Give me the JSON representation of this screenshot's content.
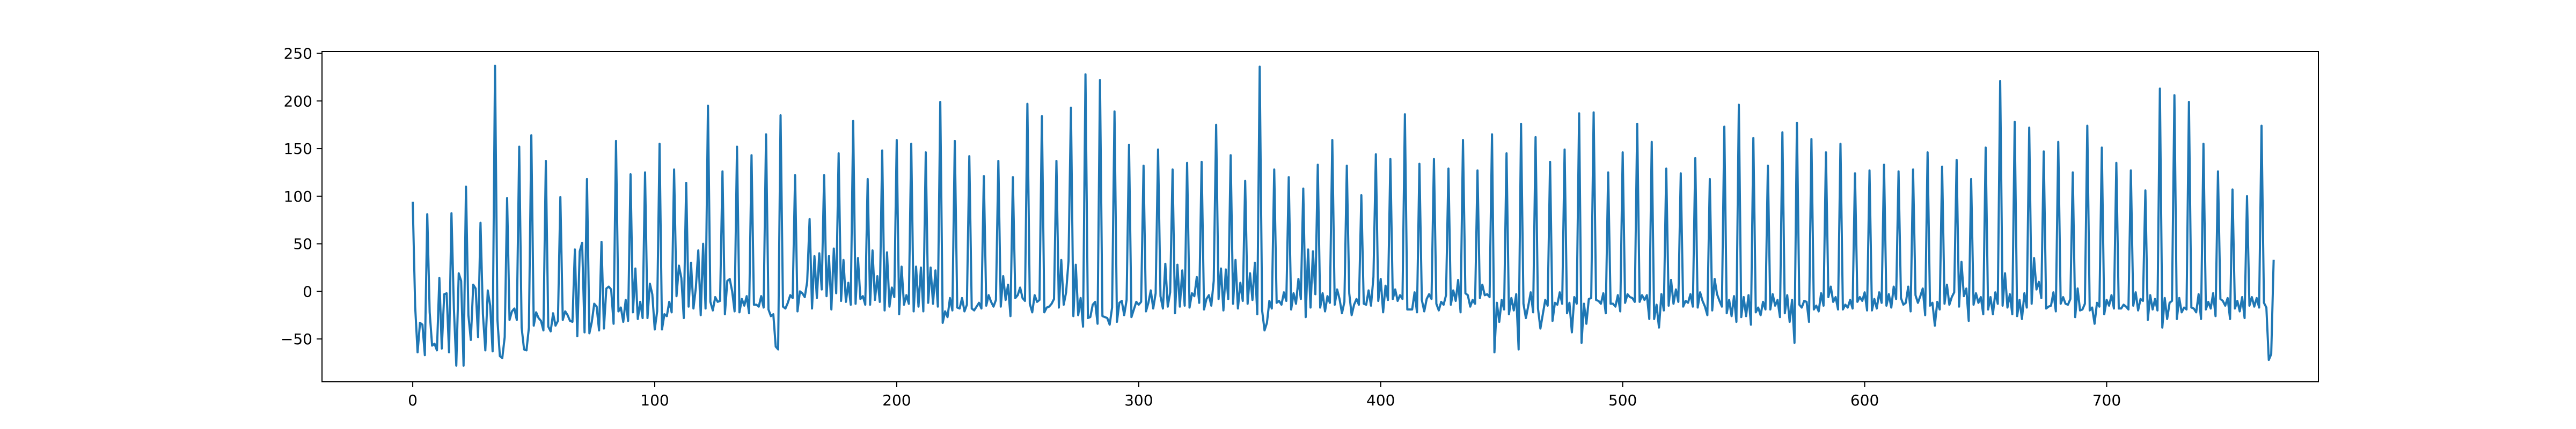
{
  "chart_data": {
    "type": "line",
    "title": "",
    "xlabel": "",
    "ylabel": "",
    "xlim": [
      -37.5,
      787.5
    ],
    "ylim": [
      -95,
      252
    ],
    "grid": false,
    "legend": "none",
    "x_ticks": [
      0,
      100,
      200,
      300,
      400,
      500,
      600,
      700
    ],
    "x_tick_labels": [
      "0",
      "100",
      "200",
      "300",
      "400",
      "500",
      "600",
      "700"
    ],
    "y_ticks": [
      -50,
      0,
      50,
      100,
      150,
      200,
      250
    ],
    "y_tick_labels": [
      "−50",
      "0",
      "50",
      "100",
      "150",
      "200",
      "250"
    ],
    "series": [
      {
        "color": "#1f77b4",
        "x_start": 0,
        "x_step": 1,
        "values": [
          93,
          -16,
          -64,
          -33,
          -35,
          -67,
          81,
          -22,
          -57,
          -55,
          -62,
          14,
          -60,
          -3,
          -2,
          -64,
          82,
          -18,
          -78,
          19,
          11,
          -78,
          110,
          -25,
          -51,
          7,
          3,
          -48,
          72,
          -24,
          -62,
          1,
          -15,
          -63,
          237,
          -30,
          -68,
          -70,
          -48,
          98,
          -30,
          -21,
          -18,
          -30,
          152,
          -38,
          -61,
          -62,
          -38,
          164,
          -36,
          -22,
          -28,
          -31,
          -41,
          137,
          -37,
          -42,
          -23,
          -36,
          -31,
          99,
          -30,
          -21,
          -25,
          -31,
          -32,
          44,
          -47,
          42,
          51,
          -43,
          118,
          -44,
          -32,
          -13,
          -16,
          -41,
          52,
          -39,
          3,
          5,
          2,
          -34,
          158,
          -21,
          -17,
          -32,
          -9,
          -31,
          123,
          -22,
          24,
          -29,
          -11,
          -28,
          125,
          -28,
          8,
          -3,
          -40,
          -21,
          155,
          -40,
          -24,
          -26,
          -11,
          -22,
          128,
          -5,
          27,
          14,
          -28,
          114,
          -16,
          30,
          -18,
          4,
          43,
          -25,
          50,
          -18,
          195,
          -11,
          -20,
          -6,
          -11,
          -10,
          126,
          -24,
          11,
          13,
          0,
          -21,
          152,
          -22,
          -8,
          -15,
          -5,
          -23,
          143,
          -14,
          -14,
          -16,
          -5,
          -17,
          165,
          -19,
          -26,
          -24,
          -58,
          -61,
          185,
          -16,
          -18,
          -12,
          -4,
          -7,
          122,
          -21,
          0,
          -2,
          -6,
          10,
          76,
          -18,
          37,
          -7,
          40,
          2,
          122,
          -5,
          37,
          -19,
          45,
          -2,
          145,
          -10,
          33,
          -11,
          9,
          -14,
          179,
          -13,
          35,
          -8,
          -5,
          -14,
          118,
          -14,
          43,
          -9,
          16,
          -11,
          148,
          -20,
          41,
          -16,
          4,
          -6,
          159,
          -24,
          26,
          -14,
          -4,
          -13,
          155,
          -21,
          26,
          -16,
          25,
          -21,
          146,
          -12,
          25,
          -13,
          22,
          -16,
          199,
          -33,
          -21,
          -27,
          -7,
          -20,
          158,
          -17,
          -18,
          -7,
          -21,
          -14,
          142,
          -18,
          -20,
          -16,
          -12,
          -18,
          121,
          -15,
          -4,
          -11,
          -16,
          -9,
          137,
          -16,
          16,
          -9,
          7,
          -26,
          120,
          -7,
          -4,
          4,
          -7,
          -10,
          197,
          -13,
          -22,
          -4,
          -11,
          -9,
          184,
          -22,
          -17,
          -16,
          -13,
          -8,
          137,
          -17,
          33,
          -14,
          -1,
          32,
          193,
          -26,
          28,
          -25,
          -7,
          -37,
          228,
          -28,
          -27,
          -14,
          -11,
          -34,
          222,
          -26,
          -27,
          -28,
          -35,
          -17,
          189,
          -32,
          -12,
          -10,
          -25,
          -9,
          154,
          -27,
          -19,
          -11,
          -14,
          -11,
          132,
          -21,
          -12,
          1,
          -18,
          -2,
          149,
          -5,
          -18,
          29,
          -16,
          -1,
          128,
          -23,
          28,
          -16,
          22,
          -15,
          135,
          -17,
          -2,
          -5,
          15,
          -12,
          136,
          -19,
          -8,
          -4,
          -15,
          11,
          175,
          -8,
          24,
          -20,
          23,
          -8,
          143,
          -13,
          33,
          -18,
          9,
          -10,
          116,
          -13,
          19,
          -9,
          30,
          -24,
          236,
          -20,
          -41,
          -33,
          -10,
          -18,
          128,
          -12,
          -10,
          -14,
          -1,
          -10,
          120,
          -19,
          -2,
          -13,
          13,
          -8,
          108,
          -27,
          44,
          -17,
          42,
          -3,
          133,
          -17,
          -2,
          -21,
          -5,
          -12,
          159,
          -14,
          2,
          -8,
          -23,
          -11,
          132,
          -2,
          -25,
          -14,
          -8,
          -14,
          101,
          -13,
          -14,
          1,
          -15,
          15,
          144,
          -10,
          13,
          -22,
          6,
          -9,
          139,
          -8,
          2,
          -10,
          -4,
          -8,
          186,
          -19,
          -19,
          -19,
          -1,
          -22,
          134,
          -9,
          -21,
          -8,
          -3,
          -8,
          139,
          -13,
          -20,
          -11,
          -14,
          -4,
          129,
          -14,
          1,
          -10,
          12,
          -22,
          159,
          -2,
          -4,
          -16,
          -9,
          -13,
          127,
          -7,
          7,
          -4,
          -3,
          -6,
          165,
          -64,
          -12,
          -32,
          -9,
          -19,
          145,
          -24,
          -7,
          -20,
          -3,
          -61,
          176,
          -13,
          -28,
          -15,
          -1,
          -22,
          162,
          -18,
          -39,
          -24,
          -9,
          -15,
          136,
          -31,
          -12,
          -14,
          -1,
          -13,
          149,
          -23,
          -12,
          -43,
          -6,
          -13,
          187,
          -54,
          -13,
          -34,
          -8,
          -7,
          188,
          -9,
          -10,
          -13,
          -2,
          -23,
          125,
          -13,
          -13,
          -16,
          -4,
          -21,
          146,
          -12,
          -3,
          -6,
          -7,
          -11,
          176,
          -11,
          -4,
          -9,
          -4,
          -29,
          157,
          -29,
          -14,
          -38,
          -3,
          -20,
          129,
          -15,
          12,
          -13,
          2,
          -11,
          124,
          -16,
          -10,
          -12,
          -3,
          -16,
          140,
          -17,
          -1,
          -10,
          -16,
          -25,
          118,
          -20,
          13,
          -3,
          -10,
          -16,
          173,
          -23,
          -9,
          -26,
          -5,
          -32,
          196,
          -27,
          -6,
          -26,
          -4,
          -35,
          161,
          -22,
          -17,
          -25,
          -11,
          -19,
          132,
          -19,
          -3,
          -15,
          -9,
          -27,
          167,
          -23,
          -4,
          -32,
          -9,
          -54,
          177,
          -14,
          -17,
          -10,
          -11,
          -32,
          160,
          -19,
          -15,
          -21,
          -2,
          -15,
          146,
          -6,
          5,
          -11,
          -6,
          -19,
          155,
          -19,
          -14,
          -17,
          -9,
          -18,
          124,
          -11,
          -6,
          -10,
          -1,
          -20,
          127,
          -20,
          -8,
          -18,
          -1,
          -12,
          133,
          -15,
          -3,
          -17,
          5,
          -8,
          126,
          -7,
          -14,
          -12,
          5,
          -21,
          128,
          -4,
          -12,
          -5,
          3,
          -25,
          146,
          -15,
          -12,
          -36,
          -11,
          -19,
          131,
          -13,
          7,
          -14,
          -6,
          -1,
          138,
          -16,
          31,
          -5,
          3,
          -31,
          118,
          -14,
          -2,
          -12,
          -6,
          -24,
          151,
          -19,
          -6,
          -24,
          -1,
          -13,
          221,
          -15,
          19,
          -17,
          -3,
          -24,
          178,
          -26,
          -9,
          -29,
          -2,
          -17,
          172,
          -13,
          35,
          2,
          10,
          -7,
          147,
          -18,
          -16,
          -15,
          -1,
          -21,
          157,
          -13,
          -6,
          -13,
          -14,
          -8,
          125,
          -27,
          3,
          -20,
          -19,
          -13,
          174,
          -20,
          -17,
          -34,
          -12,
          -16,
          151,
          -24,
          -9,
          -15,
          -4,
          -18,
          135,
          -18,
          -18,
          -14,
          -16,
          -19,
          127,
          -15,
          -1,
          -20,
          -8,
          -10,
          106,
          -30,
          -4,
          -19,
          -8,
          -20,
          213,
          -38,
          -7,
          -29,
          -12,
          -10,
          206,
          -29,
          -7,
          -22,
          -17,
          -19,
          199,
          -17,
          -18,
          -22,
          -3,
          -29,
          155,
          -19,
          -11,
          -18,
          -2,
          -26,
          126,
          -8,
          -10,
          -15,
          -7,
          -29,
          107,
          -18,
          -10,
          -21,
          -6,
          -28,
          100,
          -15,
          -6,
          -16,
          -7,
          -17,
          174,
          -12,
          -17,
          -72,
          -66,
          32
        ]
      }
    ]
  }
}
